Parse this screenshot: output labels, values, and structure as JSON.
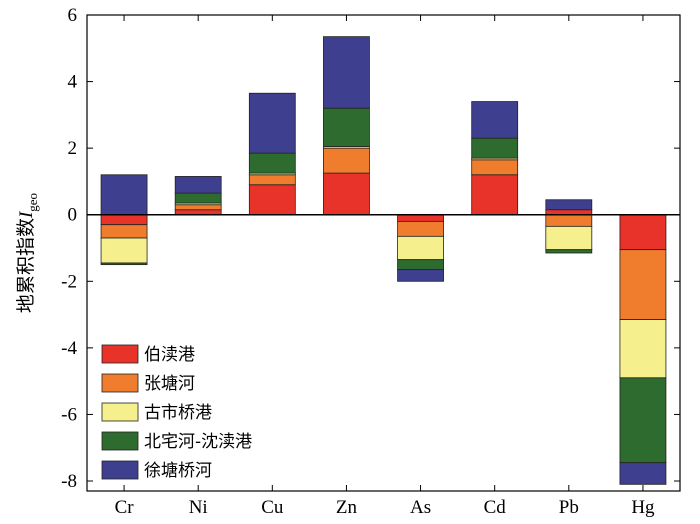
{
  "chart_data": {
    "type": "bar",
    "stacked": true,
    "title": "",
    "ylabel": "地累积指数",
    "ylabel_symbol": "I",
    "ylabel_subscript": "geo",
    "ylim": [
      -8.3,
      6
    ],
    "yticks": [
      -8,
      -6,
      -4,
      -2,
      0,
      2,
      4,
      6
    ],
    "categories": [
      "Cr",
      "Ni",
      "Cu",
      "Zn",
      "As",
      "Cd",
      "Pb",
      "Hg"
    ],
    "series": [
      {
        "name": "伯渎港",
        "color": "#e8332a",
        "values": [
          -0.3,
          0.15,
          0.9,
          1.25,
          -0.2,
          1.2,
          0.15,
          -1.05
        ]
      },
      {
        "name": "张塘河",
        "color": "#ef7d2d",
        "values": [
          -0.4,
          0.15,
          0.3,
          0.75,
          -0.45,
          0.45,
          -0.35,
          -2.1
        ]
      },
      {
        "name": "古市桥港",
        "color": "#f5ef8e",
        "values": [
          -0.75,
          0.05,
          0.05,
          0.05,
          -0.7,
          0.05,
          -0.7,
          -1.75
        ]
      },
      {
        "name": "北宅河-沈渎港",
        "color": "#2e6b2e",
        "values": [
          -0.05,
          0.3,
          0.6,
          1.15,
          -0.3,
          0.6,
          -0.1,
          -2.55
        ]
      },
      {
        "name": "徐塘桥河",
        "color": "#3f3f8f",
        "values": [
          1.2,
          0.5,
          1.8,
          2.15,
          -0.35,
          1.1,
          0.3,
          -0.65
        ]
      }
    ],
    "legend_position": "lower-left",
    "grid": false
  }
}
